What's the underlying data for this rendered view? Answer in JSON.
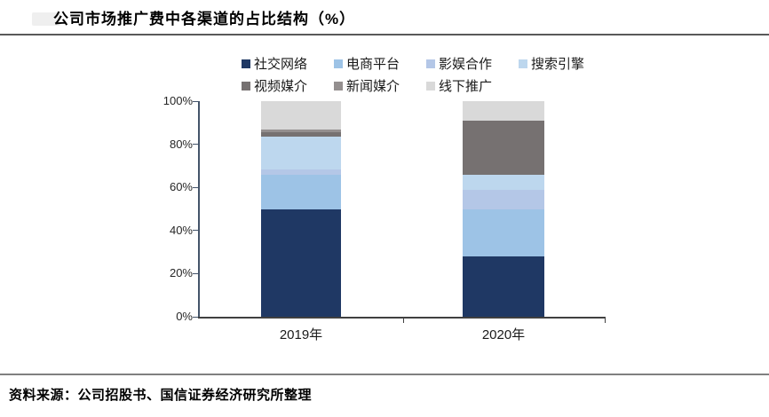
{
  "header": {
    "title": "公司市场推广费中各渠道的占比结构（%）"
  },
  "footer": {
    "source": "资料来源：公司招股书、国信证券经济研究所整理"
  },
  "colors": {
    "axis": "#44546A",
    "baseline": "#404040",
    "header_rule": "#595959",
    "footer_rule": "#808080"
  },
  "chart_data": {
    "type": "bar",
    "stacked": true,
    "title": "公司市场推广费中各渠道的占比结构（%）",
    "categories": [
      "2019年",
      "2020年"
    ],
    "series": [
      {
        "name": "社交网络",
        "color": "#1F3864",
        "values": [
          50,
          28
        ]
      },
      {
        "name": "电商平台",
        "color": "#9DC3E6",
        "values": [
          16,
          22
        ]
      },
      {
        "name": "影娱合作",
        "color": "#B4C7E7",
        "values": [
          2.5,
          9
        ]
      },
      {
        "name": "搜索引擎",
        "color": "#BDD7EE",
        "values": [
          15,
          7
        ]
      },
      {
        "name": "视频媒介",
        "color": "#767171",
        "values": [
          2,
          25
        ]
      },
      {
        "name": "新闻媒介",
        "color": "#948F8F",
        "values": [
          1.5,
          0
        ]
      },
      {
        "name": "线下推广",
        "color": "#D9D9D9",
        "values": [
          13,
          9
        ]
      }
    ],
    "xlabel": "",
    "ylabel": "",
    "ylim": [
      0,
      100
    ],
    "yticks": [
      "0%",
      "20%",
      "40%",
      "60%",
      "80%",
      "100%"
    ],
    "legend_position": "top",
    "legend_rows": [
      4,
      3
    ],
    "grid": false
  }
}
